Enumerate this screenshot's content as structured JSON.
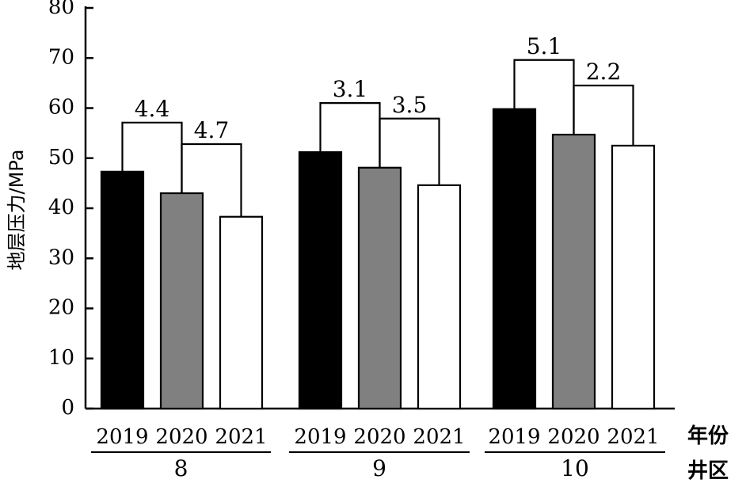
{
  "chart_data": {
    "type": "bar",
    "ylabel": "地层压力/MPa",
    "ylim": [
      0,
      80
    ],
    "yticks": [
      0,
      10,
      20,
      30,
      40,
      50,
      60,
      70,
      80
    ],
    "year_axis_label": "年份",
    "group_axis_label": "井区",
    "groups": [
      {
        "name": "8",
        "years": [
          "2019",
          "2020",
          "2021"
        ],
        "values": [
          47.3,
          43.0,
          38.3
        ],
        "differences": [
          "4.4",
          "4.7"
        ]
      },
      {
        "name": "9",
        "years": [
          "2019",
          "2020",
          "2021"
        ],
        "values": [
          51.2,
          48.1,
          44.6
        ],
        "differences": [
          "3.1",
          "3.5"
        ]
      },
      {
        "name": "10",
        "years": [
          "2019",
          "2020",
          "2021"
        ],
        "values": [
          59.8,
          54.7,
          52.5
        ],
        "differences": [
          "5.1",
          "2.2"
        ]
      }
    ],
    "colors": {
      "2019": "#000000",
      "2020": "#808080",
      "2021": "#ffffff"
    }
  }
}
